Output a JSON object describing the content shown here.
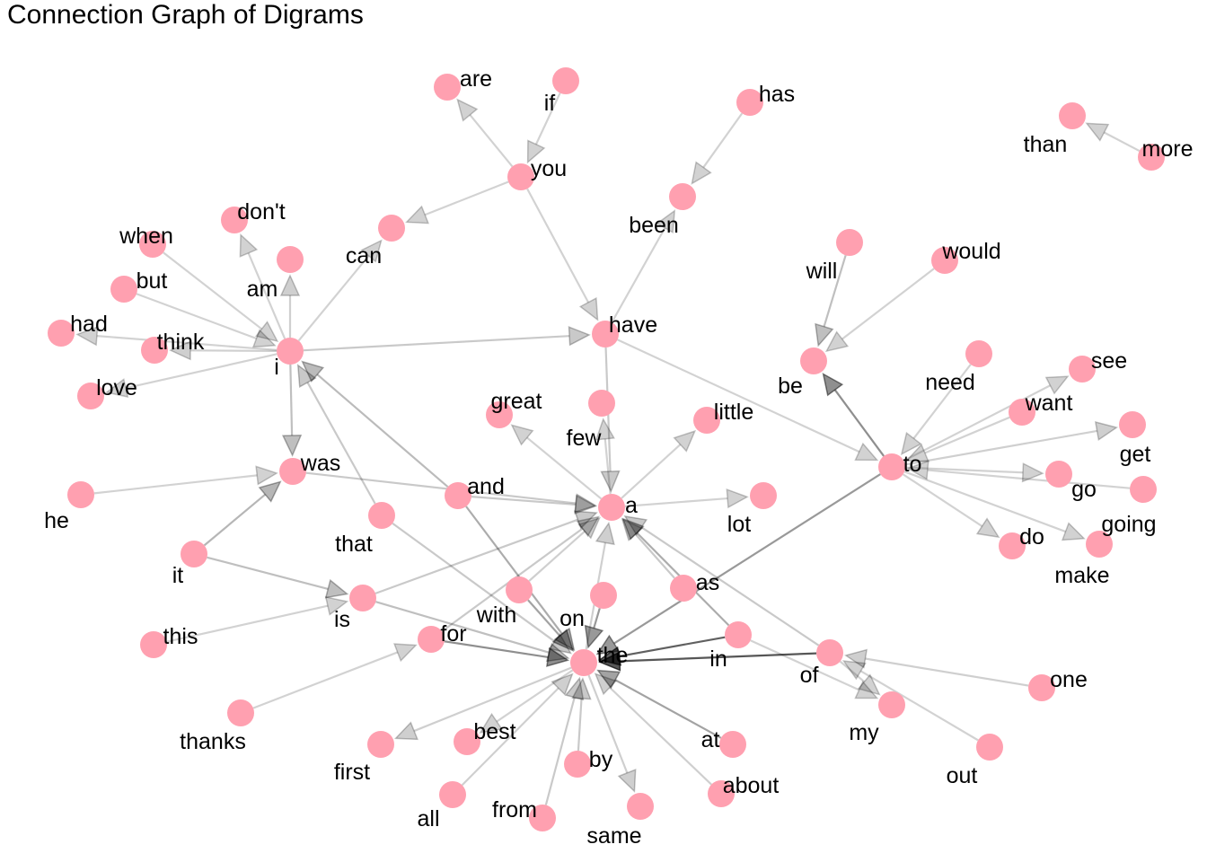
{
  "title": "Connection Graph of Digrams",
  "style": {
    "node_color": "#ffa0b0",
    "edge_color": "#000000"
  },
  "nodes": [
    {
      "id": "i",
      "label": "i"
    },
    {
      "id": "was",
      "label": "was"
    },
    {
      "id": "have",
      "label": "have"
    },
    {
      "id": "a",
      "label": "a"
    },
    {
      "id": "the",
      "label": "the"
    },
    {
      "id": "to",
      "label": "to"
    },
    {
      "id": "you",
      "label": "you"
    },
    {
      "id": "are",
      "label": "are"
    },
    {
      "id": "if",
      "label": "if"
    },
    {
      "id": "has",
      "label": "has"
    },
    {
      "id": "been",
      "label": "been"
    },
    {
      "id": "can",
      "label": "can"
    },
    {
      "id": "don't",
      "label": "don't"
    },
    {
      "id": "when",
      "label": "when"
    },
    {
      "id": "am",
      "label": "am"
    },
    {
      "id": "but",
      "label": "but"
    },
    {
      "id": "had",
      "label": "had"
    },
    {
      "id": "think",
      "label": "think"
    },
    {
      "id": "love",
      "label": "love"
    },
    {
      "id": "than",
      "label": "than"
    },
    {
      "id": "more",
      "label": "more"
    },
    {
      "id": "will",
      "label": "will"
    },
    {
      "id": "would",
      "label": "would"
    },
    {
      "id": "be",
      "label": "be"
    },
    {
      "id": "need",
      "label": "need"
    },
    {
      "id": "see",
      "label": "see"
    },
    {
      "id": "want",
      "label": "want"
    },
    {
      "id": "get",
      "label": "get"
    },
    {
      "id": "go",
      "label": "go"
    },
    {
      "id": "going",
      "label": "going"
    },
    {
      "id": "do",
      "label": "do"
    },
    {
      "id": "make",
      "label": "make"
    },
    {
      "id": "great",
      "label": "great"
    },
    {
      "id": "few",
      "label": "few"
    },
    {
      "id": "little",
      "label": "little"
    },
    {
      "id": "lot",
      "label": "lot"
    },
    {
      "id": "and",
      "label": "and"
    },
    {
      "id": "he",
      "label": "he"
    },
    {
      "id": "that",
      "label": "that"
    },
    {
      "id": "it",
      "label": "it"
    },
    {
      "id": "is",
      "label": "is"
    },
    {
      "id": "this",
      "label": "this"
    },
    {
      "id": "with",
      "label": "with"
    },
    {
      "id": "on",
      "label": "on"
    },
    {
      "id": "as",
      "label": "as"
    },
    {
      "id": "for",
      "label": "for"
    },
    {
      "id": "in",
      "label": "in"
    },
    {
      "id": "of",
      "label": "of"
    },
    {
      "id": "one",
      "label": "one"
    },
    {
      "id": "my",
      "label": "my"
    },
    {
      "id": "out",
      "label": "out"
    },
    {
      "id": "thanks",
      "label": "thanks"
    },
    {
      "id": "first",
      "label": "first"
    },
    {
      "id": "best",
      "label": "best"
    },
    {
      "id": "by",
      "label": "by"
    },
    {
      "id": "at",
      "label": "at"
    },
    {
      "id": "all",
      "label": "all"
    },
    {
      "id": "from",
      "label": "from"
    },
    {
      "id": "same",
      "label": "same"
    },
    {
      "id": "about",
      "label": "about"
    }
  ],
  "edges": [
    {
      "from": "i",
      "to": "was",
      "weight": 0.2
    },
    {
      "from": "i",
      "to": "have",
      "weight": 0.15
    },
    {
      "from": "i",
      "to": "can",
      "weight": 0.1
    },
    {
      "from": "i",
      "to": "don't",
      "weight": 0.1
    },
    {
      "from": "i",
      "to": "am",
      "weight": 0.12
    },
    {
      "from": "i",
      "to": "think",
      "weight": 0.12
    },
    {
      "from": "i",
      "to": "love",
      "weight": 0.1
    },
    {
      "from": "i",
      "to": "had",
      "weight": 0.1
    },
    {
      "from": "when",
      "to": "i",
      "weight": 0.1
    },
    {
      "from": "but",
      "to": "i",
      "weight": 0.1
    },
    {
      "from": "and",
      "to": "i",
      "weight": 0.22
    },
    {
      "from": "that",
      "to": "i",
      "weight": 0.15
    },
    {
      "from": "you",
      "to": "are",
      "weight": 0.1
    },
    {
      "from": "if",
      "to": "you",
      "weight": 0.1
    },
    {
      "from": "you",
      "to": "can",
      "weight": 0.1
    },
    {
      "from": "you",
      "to": "have",
      "weight": 0.1
    },
    {
      "from": "has",
      "to": "been",
      "weight": 0.1
    },
    {
      "from": "have",
      "to": "been",
      "weight": 0.1
    },
    {
      "from": "have",
      "to": "a",
      "weight": 0.15
    },
    {
      "from": "have",
      "to": "to",
      "weight": 0.1
    },
    {
      "from": "more",
      "to": "than",
      "weight": 0.1
    },
    {
      "from": "will",
      "to": "be",
      "weight": 0.2
    },
    {
      "from": "would",
      "to": "be",
      "weight": 0.1
    },
    {
      "from": "to",
      "to": "be",
      "weight": 0.45
    },
    {
      "from": "need",
      "to": "to",
      "weight": 0.1
    },
    {
      "from": "want",
      "to": "to",
      "weight": 0.1
    },
    {
      "from": "going",
      "to": "to",
      "weight": 0.1
    },
    {
      "from": "to",
      "to": "see",
      "weight": 0.1
    },
    {
      "from": "to",
      "to": "get",
      "weight": 0.12
    },
    {
      "from": "to",
      "to": "go",
      "weight": 0.1
    },
    {
      "from": "to",
      "to": "do",
      "weight": 0.1
    },
    {
      "from": "to",
      "to": "make",
      "weight": 0.1
    },
    {
      "from": "to",
      "to": "the",
      "weight": 0.4
    },
    {
      "from": "a",
      "to": "great",
      "weight": 0.1
    },
    {
      "from": "a",
      "to": "few",
      "weight": 0.1
    },
    {
      "from": "a",
      "to": "little",
      "weight": 0.1
    },
    {
      "from": "a",
      "to": "lot",
      "weight": 0.1
    },
    {
      "from": "was",
      "to": "a",
      "weight": 0.15
    },
    {
      "from": "and",
      "to": "a",
      "weight": 0.15
    },
    {
      "from": "and",
      "to": "the",
      "weight": 0.3
    },
    {
      "from": "he",
      "to": "was",
      "weight": 0.1
    },
    {
      "from": "it",
      "to": "was",
      "weight": 0.25
    },
    {
      "from": "it",
      "to": "is",
      "weight": 0.2
    },
    {
      "from": "this",
      "to": "is",
      "weight": 0.1
    },
    {
      "from": "is",
      "to": "a",
      "weight": 0.15
    },
    {
      "from": "is",
      "to": "the",
      "weight": 0.2
    },
    {
      "from": "that",
      "to": "the",
      "weight": 0.15
    },
    {
      "from": "with",
      "to": "a",
      "weight": 0.12
    },
    {
      "from": "with",
      "to": "the",
      "weight": 0.35
    },
    {
      "from": "on",
      "to": "the",
      "weight": 0.4
    },
    {
      "from": "for",
      "to": "a",
      "weight": 0.15
    },
    {
      "from": "for",
      "to": "the",
      "weight": 0.45
    },
    {
      "from": "as",
      "to": "a",
      "weight": 0.15
    },
    {
      "from": "of",
      "to": "a",
      "weight": 0.15
    },
    {
      "from": "in",
      "to": "a",
      "weight": 0.3
    },
    {
      "from": "in",
      "to": "the",
      "weight": 0.7
    },
    {
      "from": "of",
      "to": "the",
      "weight": 0.75
    },
    {
      "from": "in",
      "to": "my",
      "weight": 0.1
    },
    {
      "from": "of",
      "to": "my",
      "weight": 0.1
    },
    {
      "from": "one",
      "to": "of",
      "weight": 0.12
    },
    {
      "from": "out",
      "to": "of",
      "weight": 0.1
    },
    {
      "from": "thanks",
      "to": "for",
      "weight": 0.1
    },
    {
      "from": "the",
      "to": "first",
      "weight": 0.12
    },
    {
      "from": "the",
      "to": "best",
      "weight": 0.1
    },
    {
      "from": "the",
      "to": "same",
      "weight": 0.12
    },
    {
      "from": "the",
      "to": "a",
      "weight": 0.12
    },
    {
      "from": "by",
      "to": "the",
      "weight": 0.15
    },
    {
      "from": "at",
      "to": "the",
      "weight": 0.35
    },
    {
      "from": "all",
      "to": "the",
      "weight": 0.12
    },
    {
      "from": "from",
      "to": "the",
      "weight": 0.15
    },
    {
      "from": "about",
      "to": "the",
      "weight": 0.12
    }
  ]
}
